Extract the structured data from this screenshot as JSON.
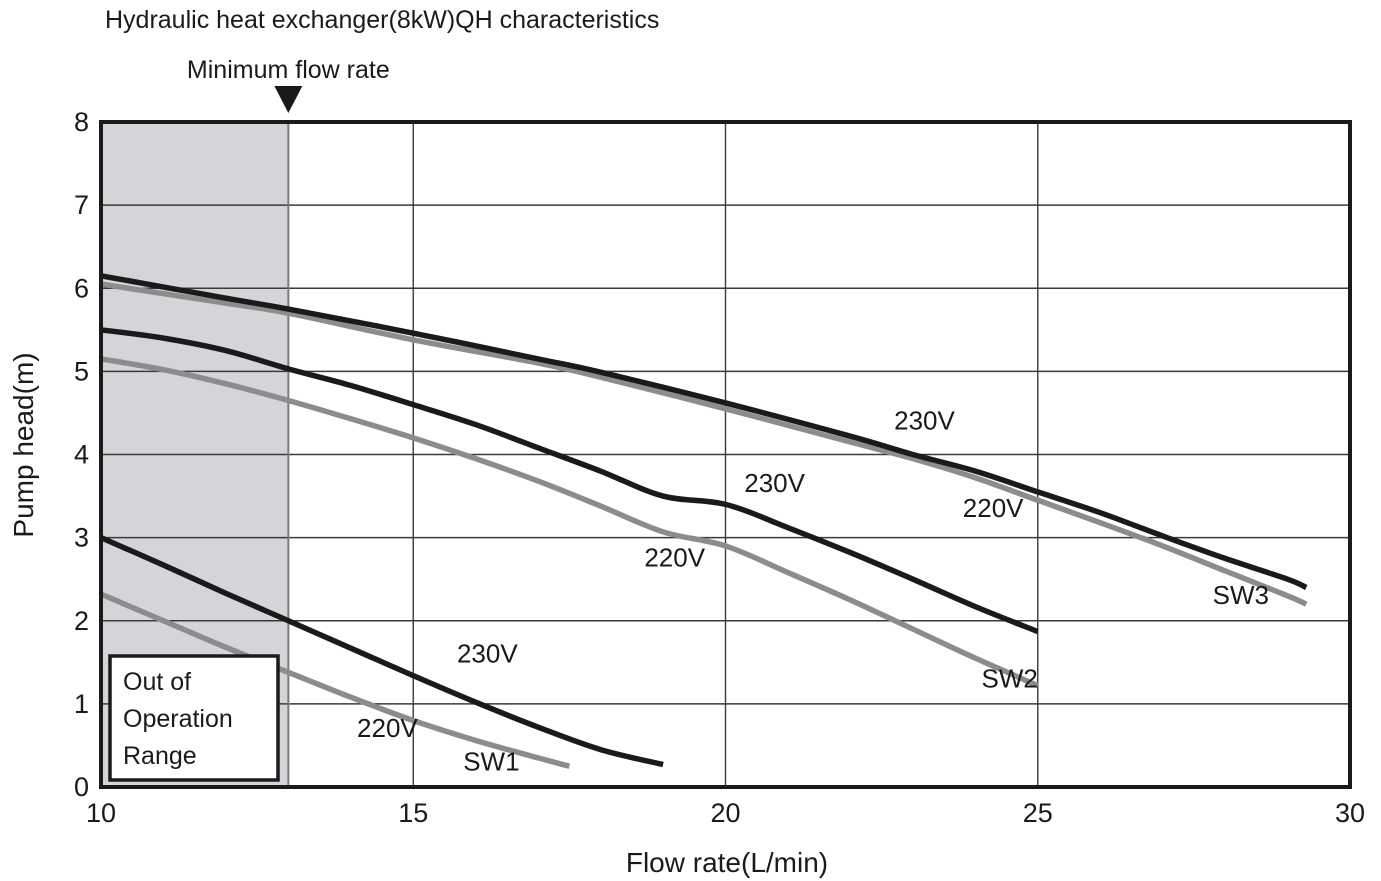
{
  "chart_data": {
    "type": "line",
    "title": "Hydraulic heat exchanger(8kW)QH characteristics",
    "xlabel": "Flow rate(L/min)",
    "ylabel": "Pump head(m)",
    "xlim": [
      10,
      30
    ],
    "ylim": [
      0,
      8
    ],
    "xticks": [
      10,
      15,
      20,
      25,
      30
    ],
    "yticks": [
      0,
      1,
      2,
      3,
      4,
      5,
      6,
      7,
      8
    ],
    "grid": true,
    "legend": "none",
    "shaded_region": {
      "x_start": 10,
      "x_end": 13,
      "label": "Out of Operation Range",
      "label_lines": [
        "Out of",
        "Operation",
        "Range"
      ],
      "color": "#d4d5d8"
    },
    "marker": {
      "x": 13,
      "label": "Minimum flow rate"
    },
    "series": [
      {
        "name": "SW1",
        "voltage": "230V",
        "color": "#1a1a1a",
        "points": [
          [
            10,
            3.0
          ],
          [
            11,
            2.67
          ],
          [
            12,
            2.33
          ],
          [
            13,
            2.0
          ],
          [
            14,
            1.67
          ],
          [
            15,
            1.34
          ],
          [
            16,
            1.02
          ],
          [
            17,
            0.72
          ],
          [
            18,
            0.45
          ],
          [
            19,
            0.27
          ]
        ]
      },
      {
        "name": "SW1",
        "voltage": "220V",
        "color": "#8c8c8c",
        "points": [
          [
            10,
            2.32
          ],
          [
            11,
            2.0
          ],
          [
            12,
            1.68
          ],
          [
            13,
            1.38
          ],
          [
            14,
            1.08
          ],
          [
            15,
            0.8
          ],
          [
            16,
            0.56
          ],
          [
            17,
            0.35
          ],
          [
            17.5,
            0.25
          ]
        ]
      },
      {
        "name": "SW2",
        "voltage": "230V",
        "color": "#1a1a1a",
        "points": [
          [
            10,
            5.5
          ],
          [
            11,
            5.4
          ],
          [
            12,
            5.25
          ],
          [
            13,
            5.03
          ],
          [
            14,
            4.83
          ],
          [
            15,
            4.6
          ],
          [
            16,
            4.36
          ],
          [
            17,
            4.08
          ],
          [
            18,
            3.8
          ],
          [
            19,
            3.5
          ],
          [
            20,
            3.4
          ],
          [
            21,
            3.12
          ],
          [
            22,
            2.82
          ],
          [
            23,
            2.5
          ],
          [
            24,
            2.17
          ],
          [
            25,
            1.87
          ]
        ]
      },
      {
        "name": "SW2",
        "voltage": "220V",
        "color": "#8c8c8c",
        "points": [
          [
            10,
            5.15
          ],
          [
            11,
            5.02
          ],
          [
            12,
            4.85
          ],
          [
            13,
            4.65
          ],
          [
            14,
            4.43
          ],
          [
            15,
            4.2
          ],
          [
            16,
            3.95
          ],
          [
            17,
            3.68
          ],
          [
            18,
            3.38
          ],
          [
            19,
            3.07
          ],
          [
            20,
            2.9
          ],
          [
            21,
            2.58
          ],
          [
            22,
            2.25
          ],
          [
            23,
            1.9
          ],
          [
            24,
            1.55
          ],
          [
            25,
            1.22
          ]
        ]
      },
      {
        "name": "SW3",
        "voltage": "230V",
        "color": "#1a1a1a",
        "points": [
          [
            10,
            6.15
          ],
          [
            12,
            5.88
          ],
          [
            13,
            5.75
          ],
          [
            15,
            5.46
          ],
          [
            17,
            5.15
          ],
          [
            18,
            4.99
          ],
          [
            20,
            4.62
          ],
          [
            22,
            4.22
          ],
          [
            23,
            4.0
          ],
          [
            24,
            3.8
          ],
          [
            25,
            3.55
          ],
          [
            26,
            3.3
          ],
          [
            27,
            3.02
          ],
          [
            28,
            2.75
          ],
          [
            29,
            2.5
          ],
          [
            29.3,
            2.4
          ]
        ]
      },
      {
        "name": "SW3",
        "voltage": "220V",
        "color": "#8c8c8c",
        "points": [
          [
            10,
            6.05
          ],
          [
            12,
            5.82
          ],
          [
            13,
            5.7
          ],
          [
            15,
            5.38
          ],
          [
            17,
            5.1
          ],
          [
            18,
            4.93
          ],
          [
            20,
            4.55
          ],
          [
            22,
            4.15
          ],
          [
            23,
            3.95
          ],
          [
            24,
            3.72
          ],
          [
            25,
            3.45
          ],
          [
            26,
            3.18
          ],
          [
            27,
            2.9
          ],
          [
            28,
            2.6
          ],
          [
            29,
            2.3
          ],
          [
            29.3,
            2.2
          ]
        ]
      }
    ],
    "curve_labels": [
      {
        "text": "230V",
        "x": 22.7,
        "y": 4.3
      },
      {
        "text": "220V",
        "x": 23.8,
        "y": 3.25
      },
      {
        "text": "SW3",
        "x": 27.8,
        "y": 2.2
      },
      {
        "text": "230V",
        "x": 20.3,
        "y": 3.55
      },
      {
        "text": "220V",
        "x": 18.7,
        "y": 2.65
      },
      {
        "text": "SW2",
        "x": 24.1,
        "y": 1.2
      },
      {
        "text": "230V",
        "x": 15.7,
        "y": 1.5
      },
      {
        "text": "220V",
        "x": 14.1,
        "y": 0.6
      },
      {
        "text": "SW1",
        "x": 15.8,
        "y": 0.2
      }
    ]
  }
}
